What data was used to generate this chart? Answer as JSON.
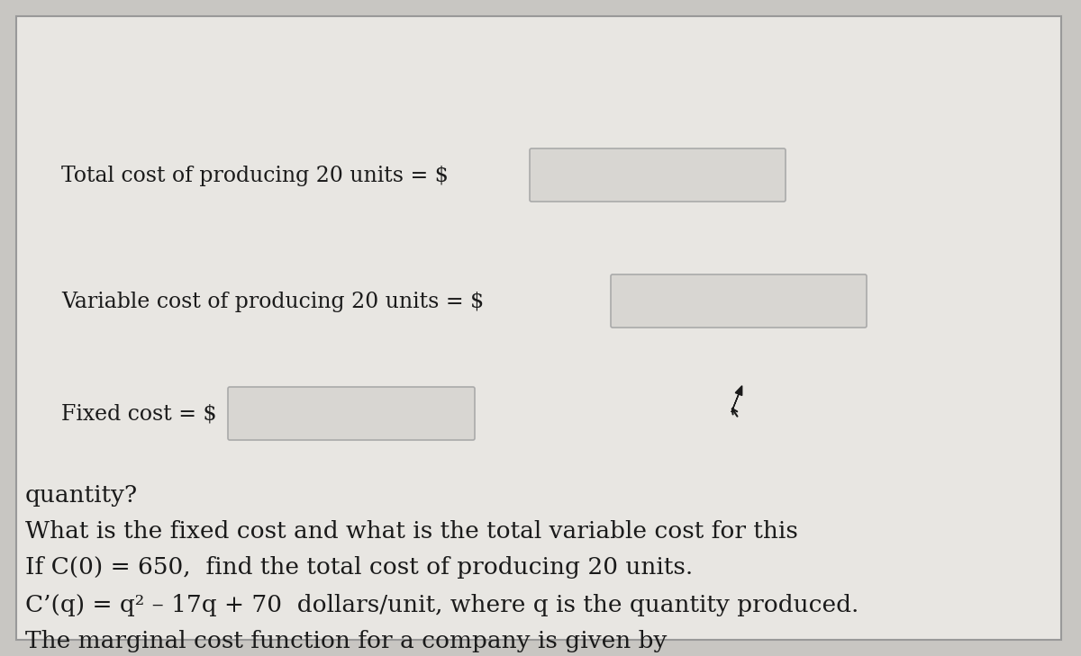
{
  "bg_color": "#c8c6c2",
  "panel_color": "#e8e6e2",
  "box_fill": "#d8d6d2",
  "box_edge": "#aaaaaa",
  "text_color": "#1a1a1a",
  "border_edge": "#999999",
  "line1": "The marginal cost function for a company is given by",
  "line2": "C’(q) = q² – 17q + 70  dollars/unit, where q is the quantity produced.",
  "line3": "If C(0) = 650,  find the total cost of producing 20 units.",
  "line4": "What is the fixed cost and what is the total variable cost for this",
  "line5": "quantity?",
  "label_fixed": "Fixed cost = $",
  "label_variable": "Variable cost of producing 20 units = $",
  "label_total": "Total cost of producing 20 units = $",
  "font_size": 19,
  "font_size_small": 17
}
